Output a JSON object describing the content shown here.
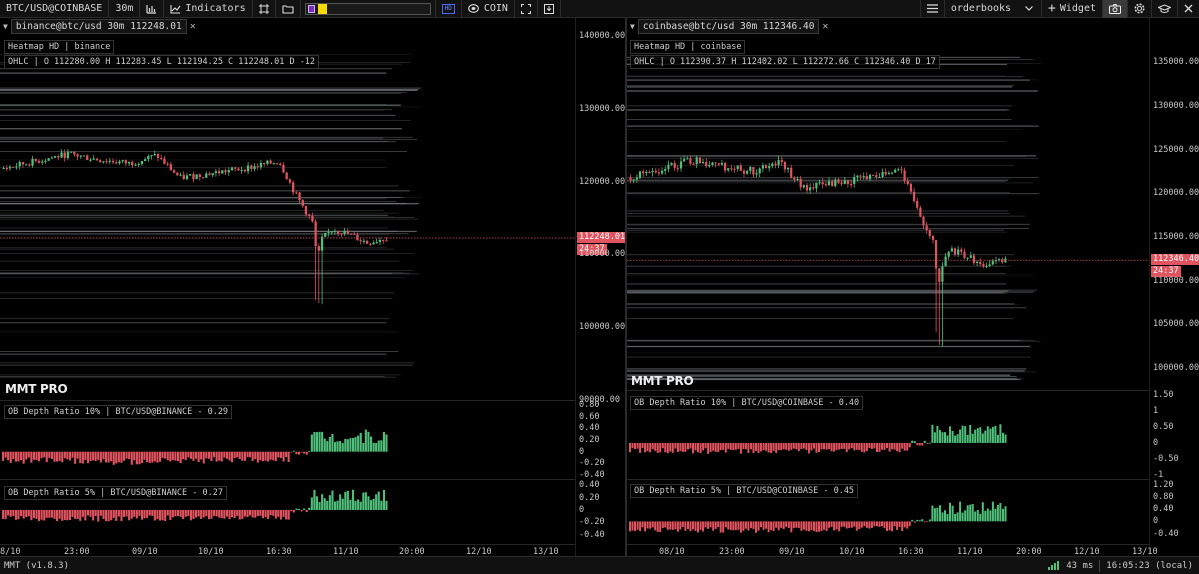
{
  "toolbar": {
    "symbol": "BTC/USD@COINBASE",
    "interval": "30m",
    "indicators_label": "Indicators",
    "hd_badge": "HD",
    "coin_label": "COIN",
    "layout_select": "orderbooks",
    "widget_label": "Widget",
    "icons": [
      "bar-chart-icon",
      "indicators-line-icon",
      "crosshair-frame-icon",
      "folder-icon",
      "hd-icon",
      "coin-icon",
      "fullscreen-icon",
      "download-icon",
      "menu-icon",
      "plus-icon",
      "camera-icon",
      "gear-icon",
      "graduation-cap-icon",
      "close-icon"
    ],
    "colors": {
      "purple": "#7a2fb8",
      "yellow": "#f5d90a"
    }
  },
  "panels": [
    {
      "title": "binance@btc/usd 30m 112248.01",
      "heatmap_legend": "Heatmap HD | binance",
      "ohlc_legend": "OHLC | O 112280.00 H 112283.45 L 112194.25 C 112248.01 D -12",
      "watermark": "MMT PRO",
      "price_ticks": [
        "140000.00",
        "130000.00",
        "120000.00",
        "110000.00",
        "100000.00",
        "90000.00"
      ],
      "price_range": [
        90000,
        140000
      ],
      "last_price": "112248.01",
      "last_price_value": 112248.01,
      "countdown": "24:37",
      "ind1_legend": "OB Depth Ratio 10% | BTC/USD@BINANCE - 0.29",
      "ind1_ticks": [
        "0.80",
        "0.60",
        "0.40",
        "0.20",
        "0",
        "-0.20",
        "-0.40"
      ],
      "ind1_range": [
        -0.45,
        0.85
      ],
      "ind2_legend": "OB Depth Ratio 5% | BTC/USD@BINANCE - 0.27",
      "ind2_ticks": [
        "0.40",
        "0.20",
        "0",
        "-0.20",
        "-0.40"
      ],
      "ind2_range": [
        -0.45,
        0.45
      ],
      "time_ticks": [
        "8/10",
        "23:00",
        "09/10",
        "10/10",
        "16:30",
        "11/10",
        "20:00",
        "12/10",
        "13/10"
      ],
      "series_seed": 7
    },
    {
      "title": "coinbase@btc/usd 30m 112346.40",
      "heatmap_legend": "Heatmap HD | coinbase",
      "ohlc_legend": "OHLC | O 112390.37 H 112402.02 L 112272.66 C 112346.40 D 17",
      "watermark": "MMT PRO",
      "price_ticks": [
        "135000.00",
        "130000.00",
        "125000.00",
        "120000.00",
        "115000.00",
        "110000.00",
        "105000.00",
        "100000.00"
      ],
      "price_range": [
        97500,
        138000
      ],
      "last_price": "112346.40",
      "last_price_value": 112346.4,
      "countdown": "24:37",
      "ind1_legend": "OB Depth Ratio 10% | BTC/USD@COINBASE - 0.40",
      "ind1_ticks": [
        "1.50",
        "1",
        "0.50",
        "0",
        "-0.50",
        "-1"
      ],
      "ind1_range": [
        -1.1,
        1.6
      ],
      "ind2_legend": "OB Depth Ratio 5% | BTC/USD@COINBASE - 0.45",
      "ind2_ticks": [
        "1.20",
        "0.80",
        "0.40",
        "0",
        "-0.40"
      ],
      "ind2_range": [
        -0.55,
        1.3
      ],
      "time_ticks": [
        "08/10",
        "23:00",
        "09/10",
        "10/10",
        "16:30",
        "11/10",
        "20:00",
        "12/10",
        "13/10"
      ],
      "series_seed": 13
    }
  ],
  "statusbar": {
    "version": "MMT (v1.8.3)",
    "latency": "43 ms",
    "clock": "16:05:23 (local)"
  },
  "colors": {
    "up": "#4fbf7a",
    "down": "#e0545f",
    "price_line": "#e0545f",
    "bg": "#000000"
  }
}
